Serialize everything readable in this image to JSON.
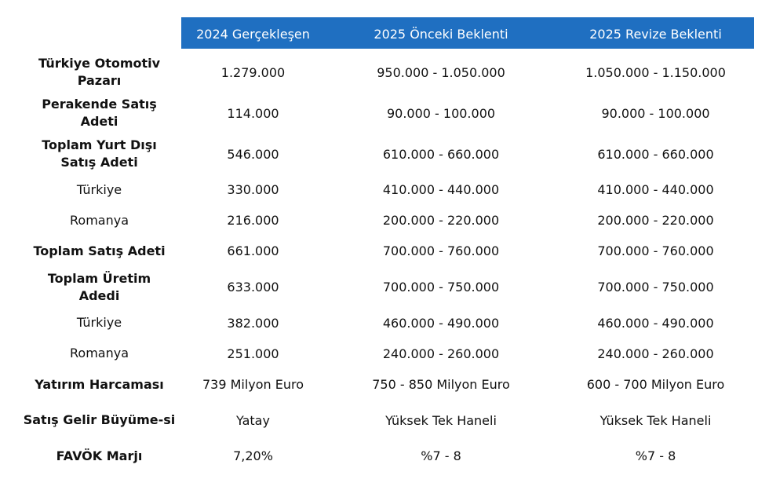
{
  "header": {
    "col1": "2024 Gerçekleşen",
    "col2": "2025 Önceki Beklenti",
    "col3": "2025 Revize Beklenti"
  },
  "rows": [
    {
      "label": "Türkiye Otomotiv Pazarı",
      "v1": "1.279.000",
      "v2": "950.000 - 1.050.000",
      "v3": "1.050.000 - 1.150.000"
    },
    {
      "label": "Perakende Satış Adeti",
      "v1": "114.000",
      "v2": "90.000 - 100.000",
      "v3": "90.000 - 100.000"
    },
    {
      "label": "Toplam Yurt Dışı Satış Adeti",
      "v1": "546.000",
      "v2": "610.000 - 660.000",
      "v3": "610.000 - 660.000"
    },
    {
      "label": "Türkiye",
      "v1": "330.000",
      "v2": "410.000 - 440.000",
      "v3": "410.000 - 440.000"
    },
    {
      "label": "Romanya",
      "v1": "216.000",
      "v2": "200.000 - 220.000",
      "v3": "200.000 - 220.000"
    },
    {
      "label": "Toplam Satış Adeti",
      "v1": "661.000",
      "v2": "700.000 - 760.000",
      "v3": "700.000 - 760.000"
    },
    {
      "label": "Toplam Üretim Adedi",
      "v1": "633.000",
      "v2": "700.000 - 750.000",
      "v3": "700.000 - 750.000"
    },
    {
      "label": "Türkiye",
      "v1": "382.000",
      "v2": "460.000 - 490.000",
      "v3": "460.000 - 490.000"
    },
    {
      "label": "Romanya",
      "v1": "251.000",
      "v2": "240.000 - 260.000",
      "v3": "240.000 - 260.000"
    },
    {
      "label": "Yatırım Harcaması",
      "v1": "739 Milyon Euro",
      "v2": "750 - 850 Milyon Euro",
      "v3": "600 - 700 Milyon Euro"
    },
    {
      "label": "Satış Gelir Büyüme-si",
      "v1": "Yatay",
      "v2": "Yüksek Tek Haneli",
      "v3": "Yüksek Tek Haneli"
    },
    {
      "label": "FAVÖK Marjı",
      "v1": "7,20%",
      "v2": "%7 - 8",
      "v3": "%7 - 8"
    }
  ]
}
